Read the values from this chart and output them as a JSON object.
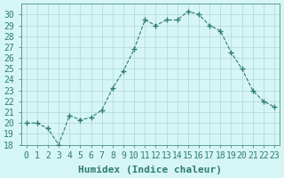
{
  "x": [
    0,
    1,
    2,
    3,
    4,
    5,
    6,
    7,
    8,
    9,
    10,
    11,
    12,
    13,
    14,
    15,
    16,
    17,
    18,
    19,
    20,
    21,
    22,
    23
  ],
  "y": [
    20,
    20,
    19.5,
    18,
    20.7,
    20.3,
    20.5,
    21.2,
    23.2,
    24.8,
    26.8,
    29.5,
    29,
    29.5,
    29.5,
    30.3,
    30,
    29,
    28.5,
    26.5,
    25,
    23,
    22,
    21.5
  ],
  "line_color": "#2e7d6e",
  "marker": "+",
  "bg_color": "#d6f5f5",
  "grid_color": "#b0d8d8",
  "xlabel": "Humidex (Indice chaleur)",
  "ylim": [
    18,
    31
  ],
  "xlim": [
    -0.5,
    23.5
  ],
  "yticks": [
    18,
    19,
    20,
    21,
    22,
    23,
    24,
    25,
    26,
    27,
    28,
    29,
    30
  ],
  "xtick_labels": [
    "0",
    "1",
    "2",
    "3",
    "4",
    "5",
    "6",
    "7",
    "8",
    "9",
    "10",
    "11",
    "12",
    "13",
    "14",
    "15",
    "16",
    "17",
    "18",
    "19",
    "20",
    "21",
    "22",
    "23"
  ],
  "tick_color": "#2e7d6e",
  "label_color": "#2e7d6e",
  "font_size": 7,
  "line_width": 0.8,
  "marker_size": 5
}
